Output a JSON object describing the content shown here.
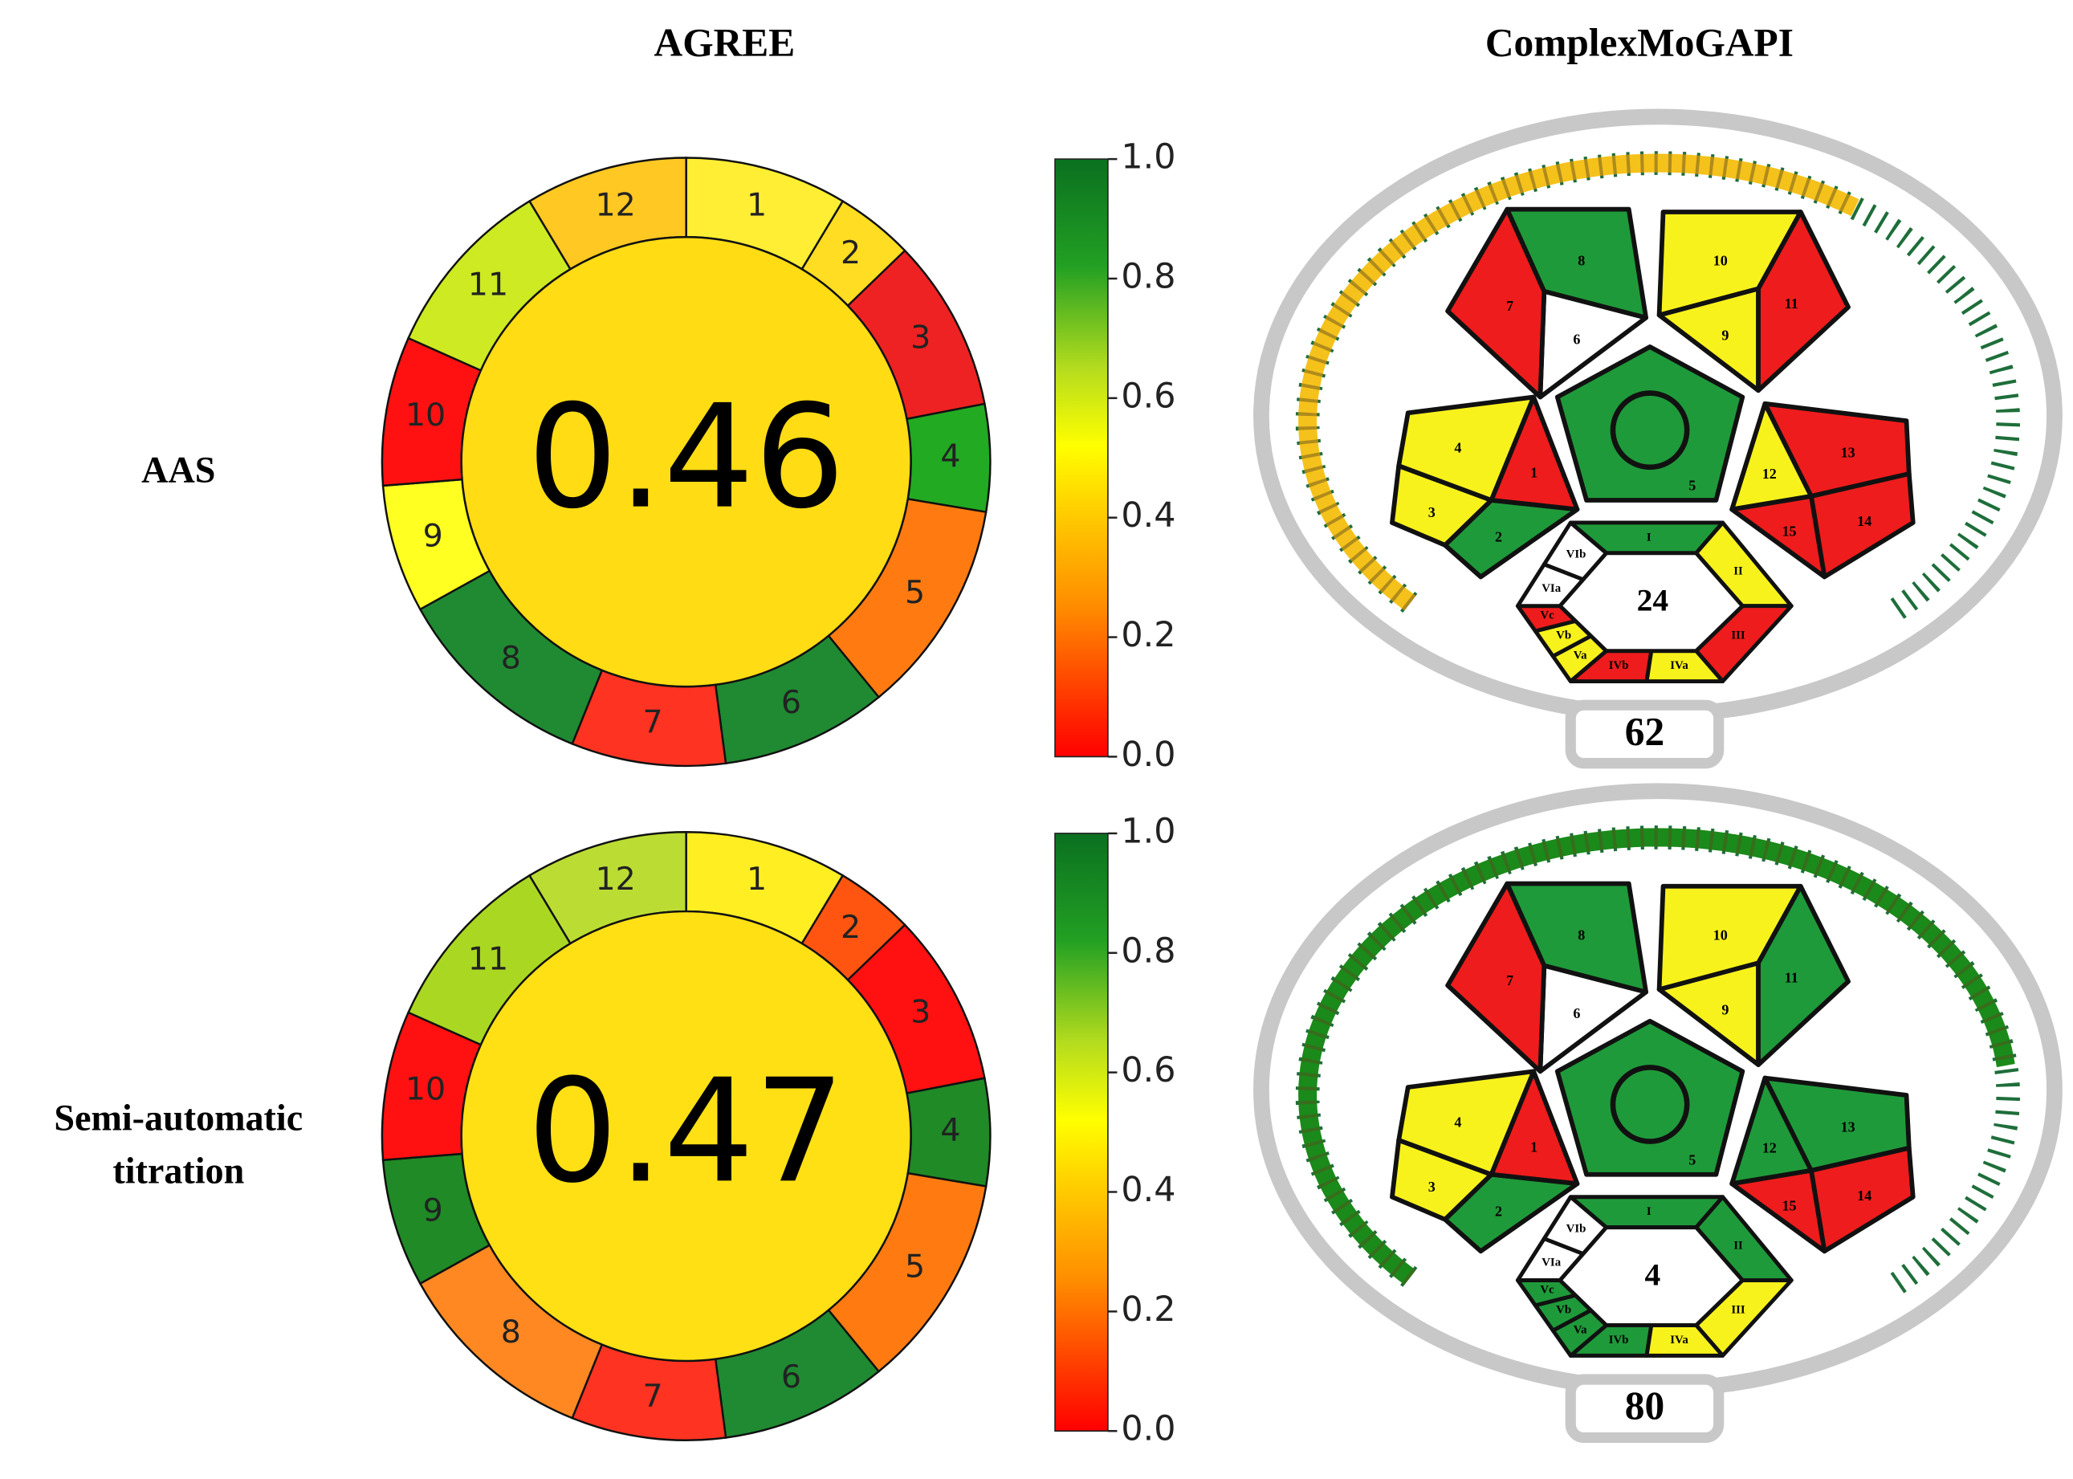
{
  "column_titles": [
    "AGREE",
    "ComplexMoGAPI"
  ],
  "rows": [
    {
      "label_lines": [
        "AAS"
      ],
      "agree": {
        "score": 0.46,
        "center_color": "#ffdc14",
        "segments": [
          {
            "label": "1",
            "color": "#ffee33"
          },
          {
            "label": "2",
            "color": "#ffdd22"
          },
          {
            "label": "3",
            "color": "#ee2222"
          },
          {
            "label": "4",
            "color": "#22aa22"
          },
          {
            "label": "5",
            "color": "#ff7b11"
          },
          {
            "label": "6",
            "color": "#1f8a32"
          },
          {
            "label": "7",
            "color": "#ff3322"
          },
          {
            "label": "8",
            "color": "#1f8a32"
          },
          {
            "label": "9",
            "color": "#ffff22"
          },
          {
            "label": "10",
            "color": "#ff1111"
          },
          {
            "label": "11",
            "color": "#cdea22"
          },
          {
            "label": "12",
            "color": "#ffc822"
          }
        ]
      },
      "colorbar_ticks": [
        {
          "value": 1,
          "label": "1.0"
        },
        {
          "value": 0.8,
          "label": "0.8"
        },
        {
          "value": 0.6,
          "label": "0.6"
        },
        {
          "value": 0.4,
          "label": "0.4"
        },
        {
          "value": 0.2,
          "label": "0.2"
        },
        {
          "value": 0,
          "label": "0.0"
        }
      ],
      "mogapi": {
        "score": 62,
        "arc_color": "#f5c21b",
        "center_label": "24",
        "regions": [
          {
            "label": "1",
            "color": "#ee1c1c"
          },
          {
            "label": "2",
            "color": "#1f9a3a"
          },
          {
            "label": "3",
            "color": "#f8f21c"
          },
          {
            "label": "4",
            "color": "#f8f21c"
          },
          {
            "label": "5",
            "color": "#1f9a3a"
          },
          {
            "label": "6",
            "color": "#ffffff"
          },
          {
            "label": "7",
            "color": "#ee1c1c"
          },
          {
            "label": "8",
            "color": "#1f9a3a"
          },
          {
            "label": "9",
            "color": "#f8f21c"
          },
          {
            "label": "10",
            "color": "#f8f21c"
          },
          {
            "label": "11",
            "color": "#ee1c1c"
          },
          {
            "label": "12",
            "color": "#f8f21c"
          },
          {
            "label": "13",
            "color": "#ee1c1c"
          },
          {
            "label": "14",
            "color": "#ee1c1c"
          },
          {
            "label": "15",
            "color": "#ee1c1c"
          }
        ],
        "hexagon": [
          {
            "label": "I",
            "color": "#1f9a3a"
          },
          {
            "label": "II",
            "color": "#f8f21c"
          },
          {
            "label": "III",
            "color": "#ee1c1c"
          },
          {
            "label": "IVa",
            "color": "#f8f21c"
          },
          {
            "label": "IVb",
            "color": "#ee1c1c"
          },
          {
            "label": "Va",
            "color": "#f8f21c"
          },
          {
            "label": "Vb",
            "color": "#f8f21c"
          },
          {
            "label": "Vc",
            "color": "#ee1c1c"
          },
          {
            "label": "VIa",
            "color": "#ffffff"
          },
          {
            "label": "VIb",
            "color": "#ffffff"
          }
        ]
      }
    },
    {
      "label_lines": [
        "Semi-automatic",
        "titration"
      ],
      "agree": {
        "score": 0.47,
        "center_color": "#ffe014",
        "segments": [
          {
            "label": "1",
            "color": "#ffee22"
          },
          {
            "label": "2",
            "color": "#ff5511"
          },
          {
            "label": "3",
            "color": "#ff1111"
          },
          {
            "label": "4",
            "color": "#1f8a26"
          },
          {
            "label": "5",
            "color": "#ff7b11"
          },
          {
            "label": "6",
            "color": "#1f8a32"
          },
          {
            "label": "7",
            "color": "#ff3322"
          },
          {
            "label": "8",
            "color": "#ff8822"
          },
          {
            "label": "9",
            "color": "#1f8a26"
          },
          {
            "label": "10",
            "color": "#ff1111"
          },
          {
            "label": "11",
            "color": "#aad822"
          },
          {
            "label": "12",
            "color": "#bbdd33"
          }
        ]
      },
      "colorbar_ticks": [
        {
          "value": 1,
          "label": "1.0"
        },
        {
          "value": 0.8,
          "label": "0.8"
        },
        {
          "value": 0.6,
          "label": "0.6"
        },
        {
          "value": 0.4,
          "label": "0.4"
        },
        {
          "value": 0.2,
          "label": "0.2"
        },
        {
          "value": 0,
          "label": "0.0"
        }
      ],
      "mogapi": {
        "score": 80,
        "arc_color": "#1a8a1a",
        "center_label": "4",
        "regions": [
          {
            "label": "1",
            "color": "#ee1c1c"
          },
          {
            "label": "2",
            "color": "#1f9a3a"
          },
          {
            "label": "3",
            "color": "#f8f21c"
          },
          {
            "label": "4",
            "color": "#f8f21c"
          },
          {
            "label": "5",
            "color": "#1f9a3a"
          },
          {
            "label": "6",
            "color": "#ffffff"
          },
          {
            "label": "7",
            "color": "#ee1c1c"
          },
          {
            "label": "8",
            "color": "#1f9a3a"
          },
          {
            "label": "9",
            "color": "#f8f21c"
          },
          {
            "label": "10",
            "color": "#f8f21c"
          },
          {
            "label": "11",
            "color": "#1f9a3a"
          },
          {
            "label": "12",
            "color": "#1f9a3a"
          },
          {
            "label": "13",
            "color": "#1f9a3a"
          },
          {
            "label": "14",
            "color": "#ee1c1c"
          },
          {
            "label": "15",
            "color": "#ee1c1c"
          }
        ],
        "hexagon": [
          {
            "label": "I",
            "color": "#1f9a3a"
          },
          {
            "label": "II",
            "color": "#1f9a3a"
          },
          {
            "label": "III",
            "color": "#f8f21c"
          },
          {
            "label": "IVa",
            "color": "#f8f21c"
          },
          {
            "label": "IVb",
            "color": "#1f9a3a"
          },
          {
            "label": "Va",
            "color": "#1f9a3a"
          },
          {
            "label": "Vb",
            "color": "#1f9a3a"
          },
          {
            "label": "Vc",
            "color": "#1f9a3a"
          },
          {
            "label": "VIa",
            "color": "#ffffff"
          },
          {
            "label": "VIb",
            "color": "#ffffff"
          }
        ]
      }
    }
  ]
}
